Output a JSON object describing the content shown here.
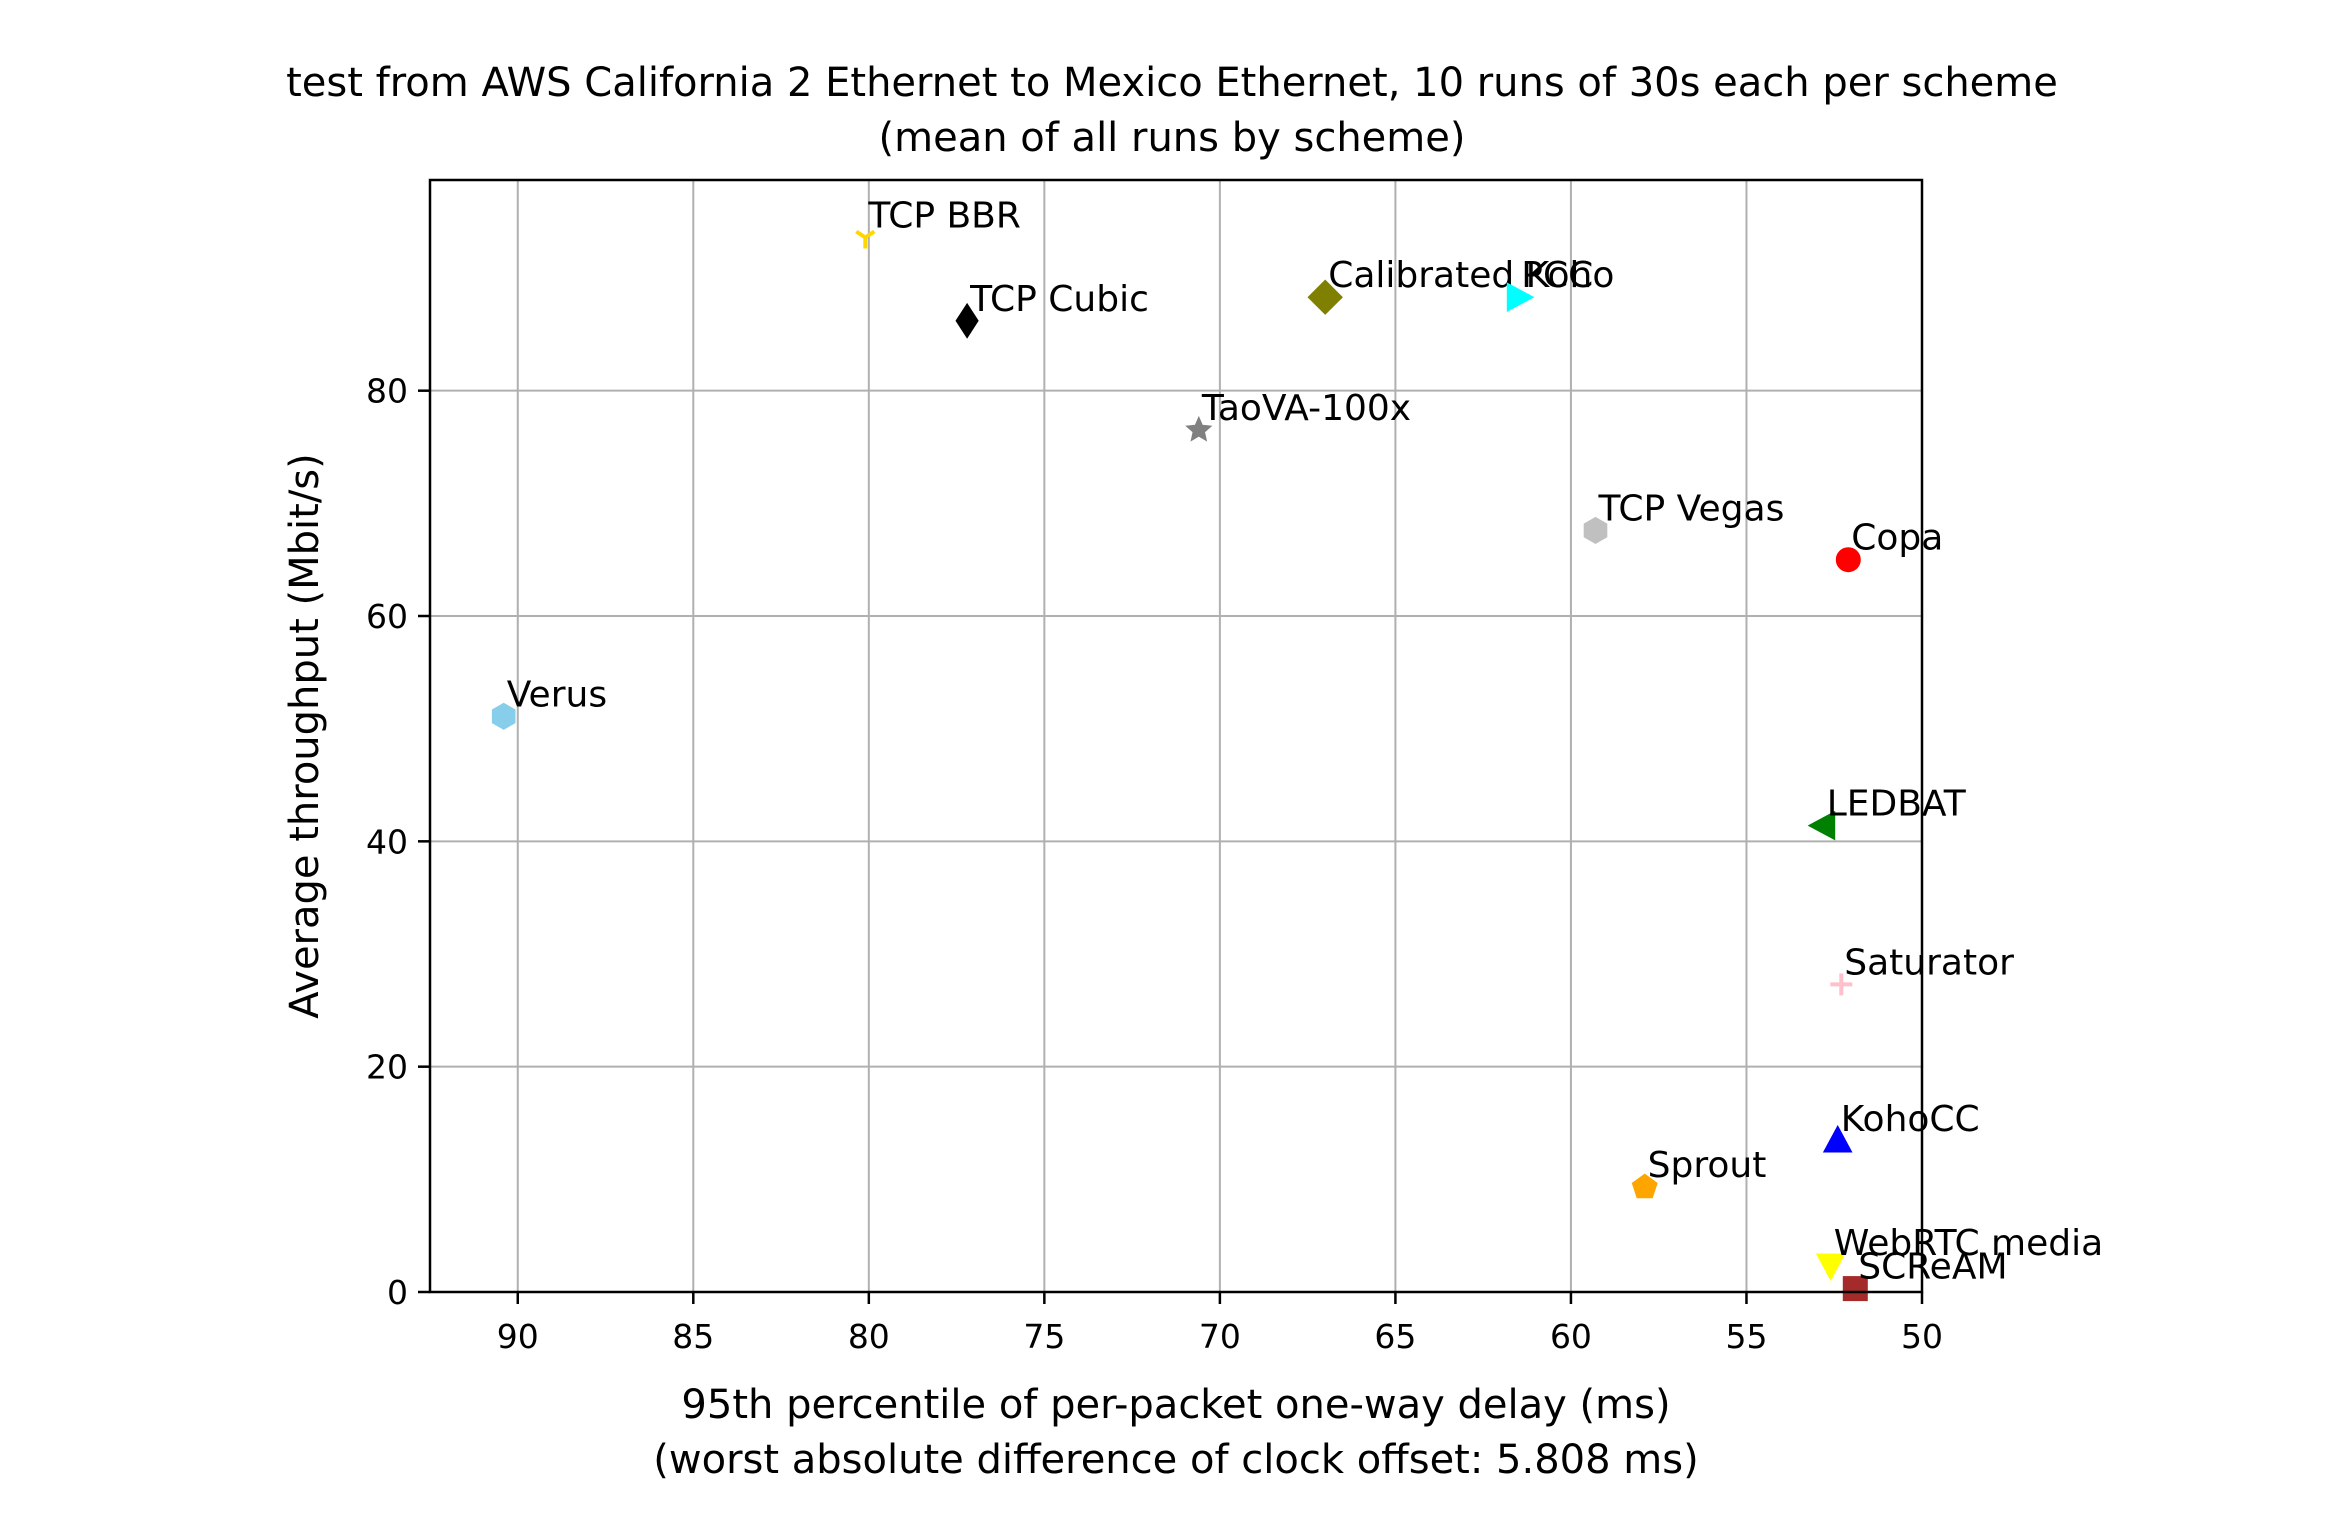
{
  "chart_data": {
    "type": "scatter",
    "title": "test from AWS California 2 Ethernet to Mexico Ethernet, 10 runs of 30s each per scheme",
    "subtitle": "(mean of all runs by scheme)",
    "xlabel": "95th percentile of per-packet one-way delay (ms)",
    "xlabel2": "(worst absolute difference of clock offset: 5.808 ms)",
    "ylabel": "Average throughput (Mbit/s)",
    "x_inverted": true,
    "xlim": [
      92.5,
      50
    ],
    "ylim": [
      0,
      98.7
    ],
    "xticks": [
      90,
      85,
      80,
      75,
      70,
      65,
      60,
      55,
      50
    ],
    "yticks": [
      0,
      20,
      40,
      60,
      80
    ],
    "grid": true,
    "points": [
      {
        "name": "TCP BBR",
        "x": 80.1,
        "y": 93.6,
        "color": "#ffd700",
        "marker": "tri-down"
      },
      {
        "name": "TCP Cubic",
        "x": 77.2,
        "y": 86.2,
        "color": "#000000",
        "marker": "thin-diamond"
      },
      {
        "name": "Calibrated Koho",
        "x": 67.0,
        "y": 88.3,
        "color": "#808000",
        "marker": "diamond"
      },
      {
        "name": "PCC",
        "x": 61.5,
        "y": 88.3,
        "color": "#00ffff",
        "marker": "triangle-right"
      },
      {
        "name": "TaoVA-100x",
        "x": 70.6,
        "y": 76.5,
        "color": "#808080",
        "marker": "star"
      },
      {
        "name": "TCP Vegas",
        "x": 59.3,
        "y": 67.6,
        "color": "#c0c0c0",
        "marker": "hexagon"
      },
      {
        "name": "Copa",
        "x": 52.1,
        "y": 65.0,
        "color": "#ff0000",
        "marker": "circle"
      },
      {
        "name": "Verus",
        "x": 90.4,
        "y": 51.1,
        "color": "#87ceeb",
        "marker": "hexagon"
      },
      {
        "name": "LEDBAT",
        "x": 52.8,
        "y": 41.4,
        "color": "#008000",
        "marker": "triangle-left"
      },
      {
        "name": "Saturator",
        "x": 52.3,
        "y": 27.3,
        "color": "#ffc0cb",
        "marker": "plus"
      },
      {
        "name": "KohoCC",
        "x": 52.4,
        "y": 13.4,
        "color": "#0000ff",
        "marker": "triangle-up"
      },
      {
        "name": "Sprout",
        "x": 57.9,
        "y": 9.3,
        "color": "#ffa500",
        "marker": "pentagon"
      },
      {
        "name": "WebRTC media",
        "x": 52.6,
        "y": 2.4,
        "color": "#ffff00",
        "marker": "triangle-down"
      },
      {
        "name": "SCReAM",
        "x": 51.9,
        "y": 0.3,
        "color": "#a52a2a",
        "marker": "square"
      }
    ]
  }
}
